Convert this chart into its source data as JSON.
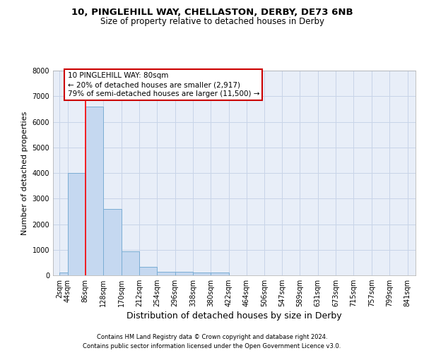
{
  "title": "10, PINGLEHILL WAY, CHELLASTON, DERBY, DE73 6NB",
  "subtitle": "Size of property relative to detached houses in Derby",
  "xlabel": "Distribution of detached houses by size in Derby",
  "ylabel": "Number of detached properties",
  "bar_values": [
    100,
    4000,
    6600,
    2600,
    950,
    320,
    140,
    130,
    100,
    100,
    0,
    0,
    0,
    0,
    0,
    0,
    0,
    0,
    0,
    0
  ],
  "bar_left_edges": [
    25,
    44,
    86,
    128,
    170,
    212,
    254,
    296,
    338,
    380,
    422,
    464,
    506,
    547,
    589,
    631,
    673,
    715,
    757,
    799
  ],
  "bar_widths": [
    19,
    42,
    42,
    42,
    42,
    42,
    42,
    42,
    42,
    42,
    42,
    42,
    41,
    42,
    42,
    42,
    42,
    42,
    42,
    42
  ],
  "xtick_labels": [
    "2sqm",
    "44sqm",
    "86sqm",
    "128sqm",
    "170sqm",
    "212sqm",
    "254sqm",
    "296sqm",
    "338sqm",
    "380sqm",
    "422sqm",
    "464sqm",
    "506sqm",
    "547sqm",
    "589sqm",
    "631sqm",
    "673sqm",
    "715sqm",
    "757sqm",
    "799sqm",
    "841sqm"
  ],
  "xtick_positions": [
    25,
    44,
    86,
    128,
    170,
    212,
    254,
    296,
    338,
    380,
    422,
    464,
    506,
    547,
    589,
    631,
    673,
    715,
    757,
    799,
    841
  ],
  "ylim": [
    0,
    8000
  ],
  "xlim": [
    10,
    860
  ],
  "bar_color": "#c5d8f0",
  "bar_edge_color": "#7aadd4",
  "grid_color": "#c8d4e8",
  "bg_color": "#e8eef8",
  "red_line_x": 86,
  "annotation_text": "10 PINGLEHILL WAY: 80sqm\n← 20% of detached houses are smaller (2,917)\n79% of semi-detached houses are larger (11,500) →",
  "annotation_box_color": "#ffffff",
  "annotation_box_edge": "#cc0000",
  "footer_line1": "Contains HM Land Registry data © Crown copyright and database right 2024.",
  "footer_line2": "Contains public sector information licensed under the Open Government Licence v3.0.",
  "title_fontsize": 9.5,
  "subtitle_fontsize": 8.5,
  "ylabel_fontsize": 8,
  "xlabel_fontsize": 9,
  "tick_fontsize": 7,
  "footer_fontsize": 6,
  "annotation_fontsize": 7.5
}
